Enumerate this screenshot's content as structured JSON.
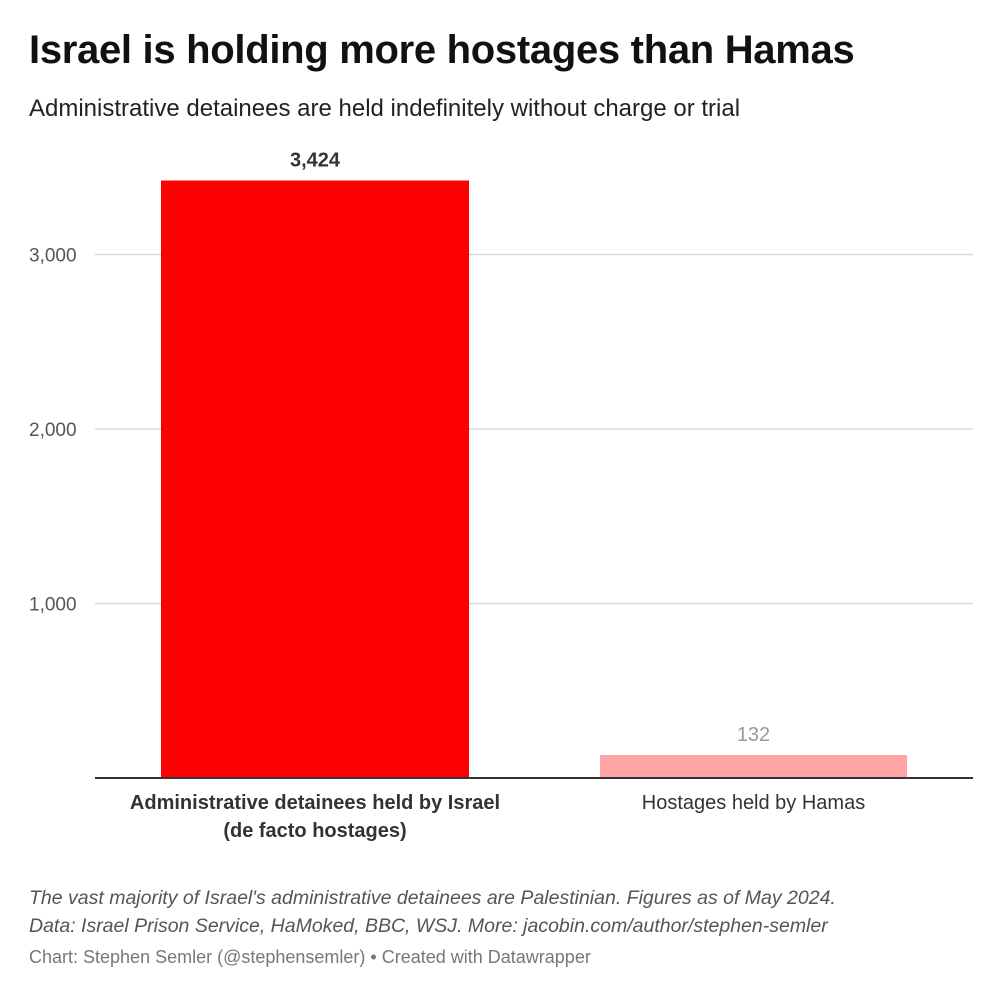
{
  "chart_data": {
    "type": "bar",
    "title": "Israel is holding more hostages than Hamas",
    "subtitle": "Administrative detainees are held indefinitely without charge or trial",
    "categories": [
      [
        "Administrative detainees held by Israel",
        "(de facto hostages)"
      ],
      [
        "Hostages held by Hamas"
      ]
    ],
    "values": [
      3424,
      132
    ],
    "value_labels": [
      "3,424",
      "132"
    ],
    "colors": [
      "#ff0000",
      "#ffa3a3"
    ],
    "value_label_colors": [
      "#333333",
      "#999999"
    ],
    "category_bold": [
      true,
      false
    ],
    "yticks": [
      1000,
      2000,
      3000
    ],
    "ytick_labels": [
      "1,000",
      "2,000",
      "3,000"
    ],
    "ylim": [
      0,
      3424
    ],
    "grid": true,
    "xlabel": "",
    "ylabel": ""
  },
  "notes": [
    "The vast majority of Israel's administrative detainees are Palestinian. Figures as of May 2024.",
    "Data: Israel Prison Service, HaMoked, BBC, WSJ. More: jacobin.com/author/stephen-semler"
  ],
  "byline": "Chart: Stephen Semler (@stephensemler) • Created with Datawrapper"
}
